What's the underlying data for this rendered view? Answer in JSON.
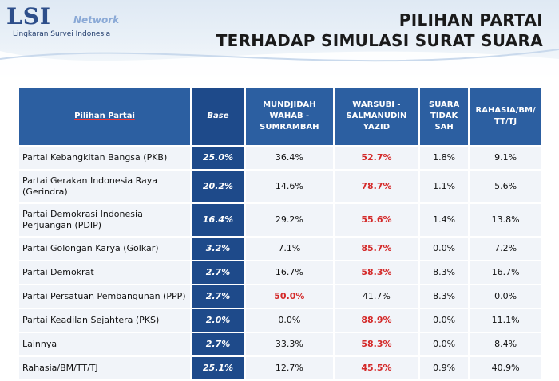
{
  "logo": {
    "mark": "LSI",
    "network": "Network",
    "subtitle": "Lingkaran Survei Indonesia"
  },
  "title": {
    "line1": "PILIHAN PARTAI",
    "line2": "TERHADAP SIMULASI SURAT SUARA"
  },
  "table": {
    "headers": {
      "label": "Pilihan Partai",
      "base": "Base",
      "col1": "MUNDJIDAH WAHAB - SUMRAMBAH",
      "col2": "WARSUBI - SALMANUDIN YAZID",
      "col3": "SUARA TIDAK SAH",
      "col4": "RAHASIA/BM/ TT/TJ"
    },
    "rows": [
      {
        "label": "Partai Kebangkitan Bangsa (PKB)",
        "base": "25.0%",
        "c1": "36.4%",
        "c2": "52.7%",
        "c3": "1.8%",
        "c4": "9.1%",
        "hi": "c2"
      },
      {
        "label": "Partai Gerakan Indonesia Raya (Gerindra)",
        "base": "20.2%",
        "c1": "14.6%",
        "c2": "78.7%",
        "c3": "1.1%",
        "c4": "5.6%",
        "hi": "c2"
      },
      {
        "label": "Partai Demokrasi Indonesia Perjuangan (PDIP)",
        "base": "16.4%",
        "c1": "29.2%",
        "c2": "55.6%",
        "c3": "1.4%",
        "c4": "13.8%",
        "hi": "c2"
      },
      {
        "label": "Partai Golongan Karya (Golkar)",
        "base": "3.2%",
        "c1": "7.1%",
        "c2": "85.7%",
        "c3": "0.0%",
        "c4": "7.2%",
        "hi": "c2"
      },
      {
        "label": "Partai Demokrat",
        "base": "2.7%",
        "c1": "16.7%",
        "c2": "58.3%",
        "c3": "8.3%",
        "c4": "16.7%",
        "hi": "c2"
      },
      {
        "label": "Partai Persatuan Pembangunan (PPP)",
        "base": "2.7%",
        "c1": "50.0%",
        "c2": "41.7%",
        "c3": "8.3%",
        "c4": "0.0%",
        "hi": "c1"
      },
      {
        "label": "Partai Keadilan Sejahtera (PKS)",
        "base": "2.0%",
        "c1": "0.0%",
        "c2": "88.9%",
        "c3": "0.0%",
        "c4": "11.1%",
        "hi": "c2"
      },
      {
        "label": "Lainnya",
        "base": "2.7%",
        "c1": "33.3%",
        "c2": "58.3%",
        "c3": "0.0%",
        "c4": "8.4%",
        "hi": "c2"
      },
      {
        "label": "Rahasia/BM/TT/TJ",
        "base": "25.1%",
        "c1": "12.7%",
        "c2": "45.5%",
        "c3": "0.9%",
        "c4": "40.9%",
        "hi": "c2"
      }
    ]
  }
}
